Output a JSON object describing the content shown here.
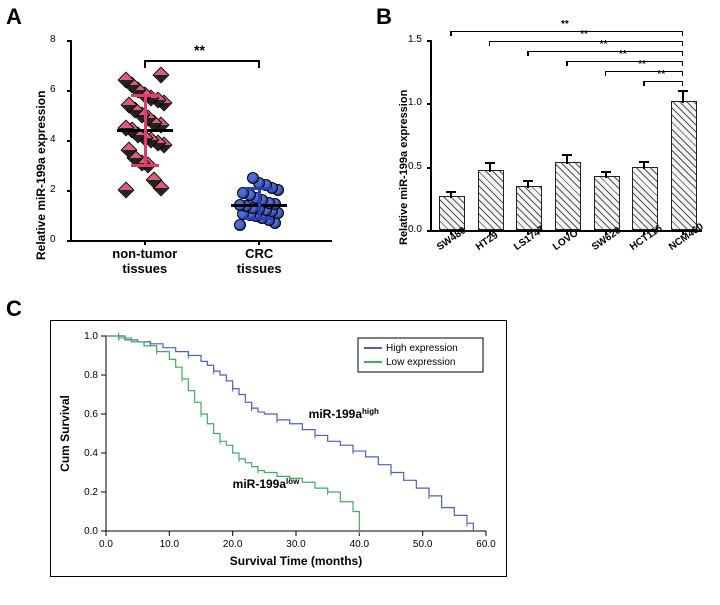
{
  "panel_labels": {
    "A": "A",
    "B": "B",
    "C": "C"
  },
  "panelA": {
    "type": "scatter",
    "y_label": "Relative miR-199a expression",
    "categories": [
      "non-tumor\ntissues",
      "CRC\ntissues"
    ],
    "ylim": [
      0,
      8
    ],
    "ytick_step": 2,
    "sig_marker": "**",
    "points_nontumor": [
      2.0,
      2.1,
      2.4,
      3.0,
      3.1,
      3.3,
      3.6,
      3.8,
      3.9,
      4.0,
      4.1,
      4.2,
      4.4,
      4.5,
      4.6,
      4.7,
      4.9,
      5.0,
      5.2,
      5.4,
      5.5,
      5.6,
      5.7,
      5.8,
      6.0,
      6.2,
      6.4,
      6.6
    ],
    "nontumor_median": 4.4,
    "nontumor_err": [
      3.0,
      5.8
    ],
    "points_crc": [
      0.6,
      0.7,
      0.8,
      0.9,
      0.95,
      1.0,
      1.05,
      1.1,
      1.15,
      1.2,
      1.25,
      1.3,
      1.35,
      1.4,
      1.45,
      1.5,
      1.6,
      1.7,
      1.8,
      1.9,
      2.0,
      2.1,
      2.2,
      2.3,
      2.5
    ],
    "crc_median": 1.4,
    "crc_err": [
      0.9,
      2.1
    ],
    "nontumor_color": "#e05a7a",
    "crc_color": "#3a50c0",
    "median_color": "#000000",
    "nontumor_whisker_color": "#e83a6a",
    "crc_whisker_color": "#2b3fb0"
  },
  "panelB": {
    "type": "bar",
    "y_label": "Relative miR-199a expression",
    "ylim": [
      0.0,
      1.5
    ],
    "ytick_step": 0.5,
    "categories": [
      "SW480",
      "HT29",
      "LS174T",
      "LOVO",
      "SW620",
      "HCT116",
      "NCM460"
    ],
    "values": [
      0.25,
      0.46,
      0.33,
      0.52,
      0.41,
      0.48,
      1.0
    ],
    "errors": [
      0.05,
      0.07,
      0.06,
      0.07,
      0.05,
      0.06,
      0.1
    ],
    "bar_fill_pattern": "hatched",
    "bar_border": "#222222",
    "sig_pairs_to_last": [
      "**",
      "**",
      "**",
      "**",
      "**",
      "**"
    ]
  },
  "panelC": {
    "type": "survival",
    "x_label": "Survival Time (months)",
    "y_label": "Cum Survival",
    "xlim": [
      0,
      60
    ],
    "xtick_step": 10,
    "ylim": [
      0.0,
      1.0
    ],
    "ytick_step": 0.2,
    "curves": {
      "high": {
        "label": "High expression",
        "inline_label": "miR-199aʰⁱᵍʰ",
        "color": "#4a60c8",
        "steps": [
          [
            0,
            1.0
          ],
          [
            2,
            1.0
          ],
          [
            3,
            0.98
          ],
          [
            5,
            0.97
          ],
          [
            7,
            0.96
          ],
          [
            9,
            0.94
          ],
          [
            11,
            0.92
          ],
          [
            13,
            0.9
          ],
          [
            15,
            0.87
          ],
          [
            16,
            0.85
          ],
          [
            17,
            0.82
          ],
          [
            18,
            0.8
          ],
          [
            19,
            0.77
          ],
          [
            20,
            0.73
          ],
          [
            21,
            0.7
          ],
          [
            22,
            0.66
          ],
          [
            23,
            0.63
          ],
          [
            24,
            0.61
          ],
          [
            25,
            0.6
          ],
          [
            27,
            0.57
          ],
          [
            29,
            0.55
          ],
          [
            31,
            0.52
          ],
          [
            33,
            0.49
          ],
          [
            35,
            0.46
          ],
          [
            37,
            0.44
          ],
          [
            39,
            0.41
          ],
          [
            41,
            0.38
          ],
          [
            43,
            0.34
          ],
          [
            45,
            0.3
          ],
          [
            47,
            0.26
          ],
          [
            49,
            0.22
          ],
          [
            51,
            0.18
          ],
          [
            53,
            0.12
          ],
          [
            55,
            0.08
          ],
          [
            57,
            0.04
          ],
          [
            58,
            0.0
          ]
        ]
      },
      "low": {
        "label": "Low expression",
        "inline_label": "miR-199aˡᵒʷ",
        "color": "#3fae5b",
        "steps": [
          [
            0,
            1.0
          ],
          [
            2,
            0.99
          ],
          [
            4,
            0.97
          ],
          [
            6,
            0.95
          ],
          [
            8,
            0.92
          ],
          [
            10,
            0.88
          ],
          [
            11,
            0.84
          ],
          [
            12,
            0.78
          ],
          [
            13,
            0.72
          ],
          [
            14,
            0.66
          ],
          [
            15,
            0.6
          ],
          [
            16,
            0.55
          ],
          [
            17,
            0.5
          ],
          [
            18,
            0.46
          ],
          [
            19,
            0.44
          ],
          [
            20,
            0.4
          ],
          [
            21,
            0.37
          ],
          [
            22,
            0.35
          ],
          [
            23,
            0.33
          ],
          [
            24,
            0.31
          ],
          [
            25,
            0.3
          ],
          [
            27,
            0.28
          ],
          [
            29,
            0.27
          ],
          [
            31,
            0.25
          ],
          [
            33,
            0.22
          ],
          [
            35,
            0.2
          ],
          [
            37,
            0.15
          ],
          [
            39,
            0.1
          ],
          [
            40,
            0.0
          ]
        ]
      }
    }
  }
}
